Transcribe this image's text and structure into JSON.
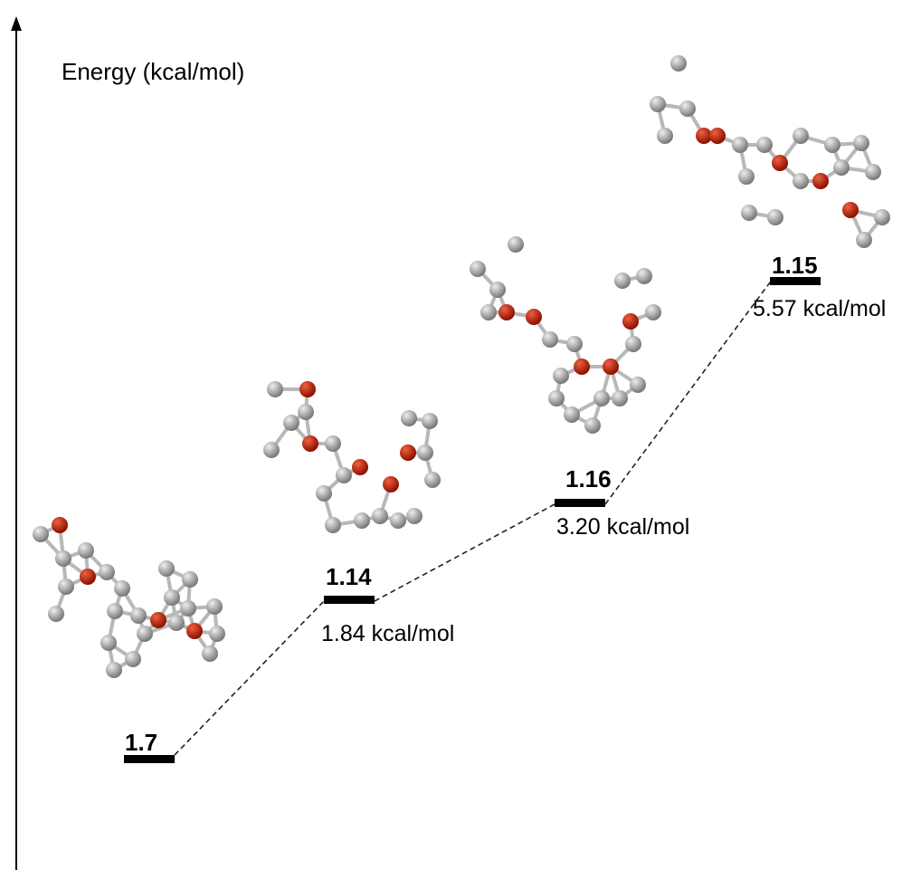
{
  "axis_label": "Energy (kcal/mol)",
  "levels": [
    {
      "label": "1.7"
    },
    {
      "label": "1.14",
      "energy": "1.84 kcal/mol"
    },
    {
      "label": "1.16",
      "energy": "3.20 kcal/mol"
    },
    {
      "label": "1.15",
      "energy": "5.57 kcal/mol"
    }
  ]
}
